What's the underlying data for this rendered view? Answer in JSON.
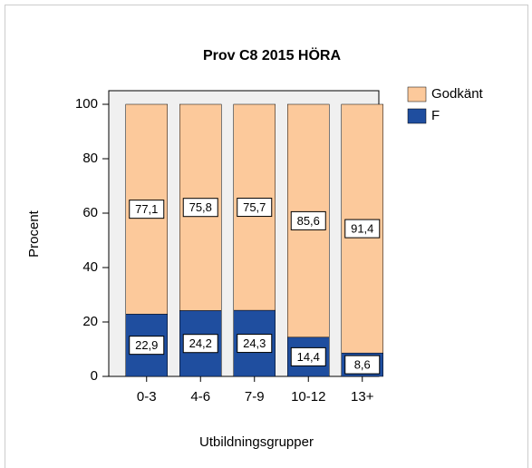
{
  "chart_data": {
    "type": "stacked_bar",
    "title": "Prov C8 2015 HÖRA",
    "x_label": "Utbildningsgrupper",
    "y_label": "Procent",
    "categories": [
      "0-3",
      "4-6",
      "7-9",
      "10-12",
      "13+"
    ],
    "series": [
      {
        "name": "Godkänt",
        "color": "#fcc99b",
        "values": [
          77.1,
          75.8,
          75.7,
          85.6,
          91.4
        ],
        "value_labels": [
          "77,1",
          "75,8",
          "75,7",
          "85,6",
          "91,4"
        ]
      },
      {
        "name": "F",
        "color": "#1f4e9f",
        "values": [
          22.9,
          24.2,
          24.3,
          14.4,
          8.6
        ],
        "value_labels": [
          "22,9",
          "24,2",
          "24,3",
          "14,4",
          "8,6"
        ]
      }
    ],
    "ylim": [
      0,
      105
    ],
    "yticks": [
      0,
      20,
      40,
      60,
      80,
      100
    ],
    "legend": "right"
  }
}
